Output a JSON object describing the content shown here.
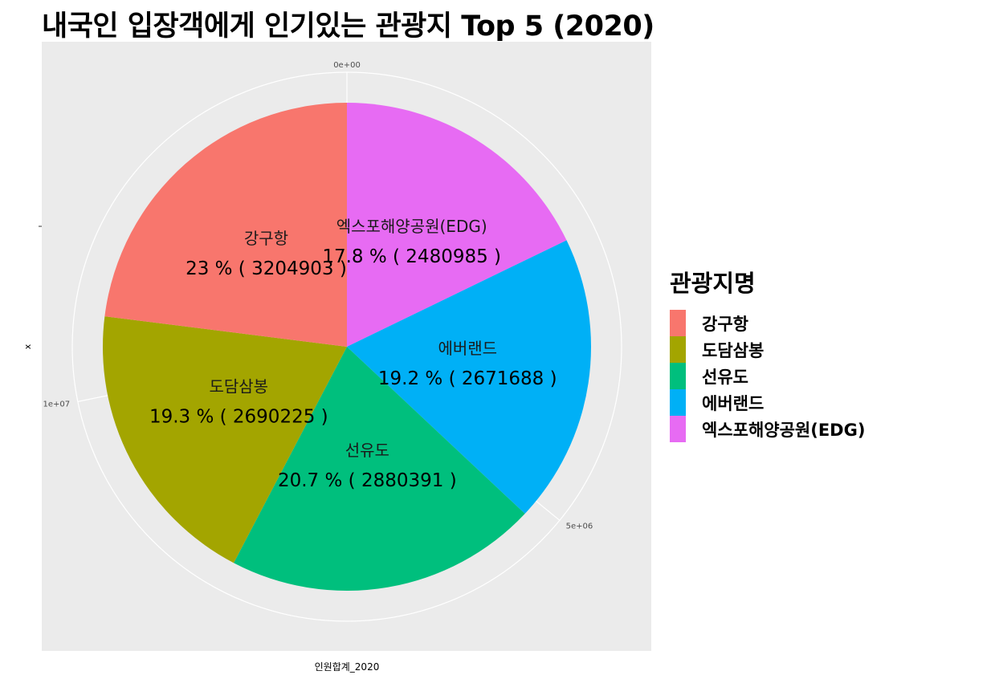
{
  "chart_data": {
    "type": "pie",
    "title": "내국인 입장객에게 인기있는 관광지 Top 5 (2020)",
    "xlabel": "인원합계_2020",
    "ylabel": "x",
    "theta_ticks": [
      {
        "value": 0,
        "label": "0e+00"
      },
      {
        "value": 5000000,
        "label": "5e+06"
      },
      {
        "value": 10000000,
        "label": "1e+07"
      }
    ],
    "legend": {
      "title": "관광지명",
      "position": "right",
      "entries": [
        "강구항",
        "도담삼봉",
        "선유도",
        "에버랜드",
        "엑스포해양공원(EDG)"
      ]
    },
    "slices": [
      {
        "name": "강구항",
        "value": 3204903,
        "percent": "23 %",
        "label": "23 % ( 3204903 )",
        "color": "#F8766D"
      },
      {
        "name": "도담삼봉",
        "value": 2690225,
        "percent": "19.3 %",
        "label": "19.3 % ( 2690225 )",
        "color": "#A3A500"
      },
      {
        "name": "선유도",
        "value": 2880391,
        "percent": "20.7 %",
        "label": "20.7 % ( 2880391 )",
        "color": "#00BF7D"
      },
      {
        "name": "에버랜드",
        "value": 2671688,
        "percent": "19.2 %",
        "label": "19.2 % ( 2671688 )",
        "color": "#00B0F6"
      },
      {
        "name": "엑스포해양공원(EDG)",
        "value": 2480985,
        "percent": "17.8 %",
        "label": "17.8 % ( 2480985 )",
        "color": "#E76BF3"
      }
    ],
    "panel_background": "#EBEBEB",
    "grid": true
  }
}
